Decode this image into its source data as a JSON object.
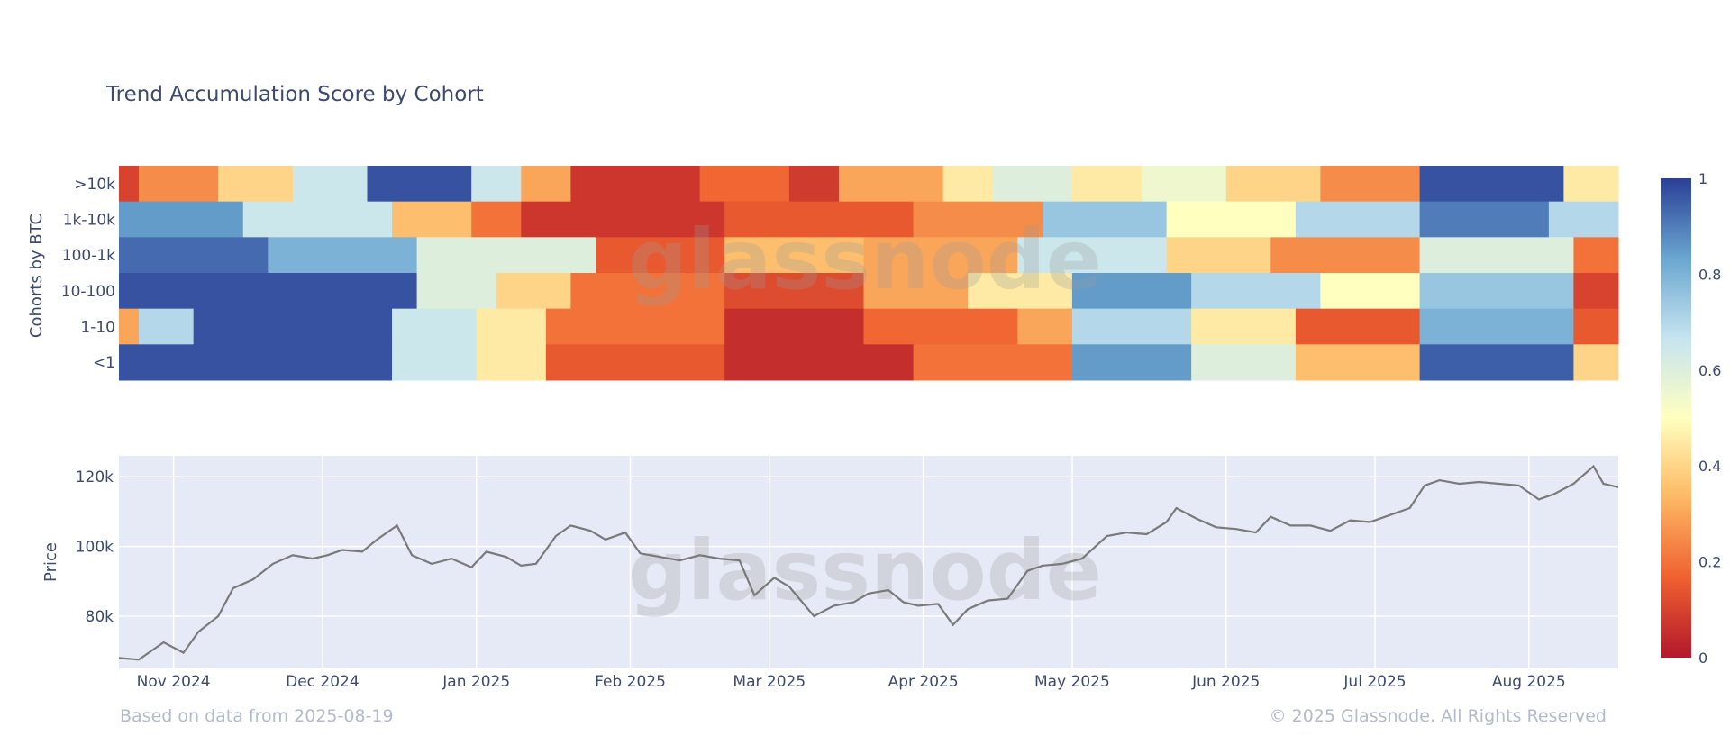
{
  "title": "Trend Accumulation Score by Cohort",
  "footer": {
    "left": "Based on data from 2025-08-19",
    "right": "© 2025 Glassnode. All Rights Reserved"
  },
  "watermark": "glassnode",
  "colors": {
    "scale": [
      "#b2182b",
      "#ef6030",
      "#fdb864",
      "#ffffbf",
      "#c6e4f0",
      "#6aa6cf",
      "#2a3f97"
    ],
    "price_line": "#7a7a7a",
    "price_bg": "#e6eaf6"
  },
  "chart_data": [
    {
      "type": "heatmap",
      "title": "Trend Accumulation Score by Cohort",
      "ylabel": "Cohorts by BTC",
      "rows": [
        ">10k",
        "1k-10k",
        "100-1k",
        "10-100",
        "1-10",
        "<1"
      ],
      "colorbar": {
        "min": 0,
        "max": 1,
        "ticks": [
          0,
          0.2,
          0.4,
          0.6,
          0.8,
          1
        ],
        "tick_labels": [
          "0",
          "0.2",
          "0.4",
          "0.6",
          "0.8",
          "1"
        ]
      },
      "segments_note": "each row: [start_date, end_date, score]",
      "values": {
        ">10k": [
          [
            "2024-10-21",
            "2024-10-25",
            0.1
          ],
          [
            "2024-10-25",
            "2024-11-10",
            0.25
          ],
          [
            "2024-11-10",
            "2024-11-25",
            0.4
          ],
          [
            "2024-11-25",
            "2024-12-10",
            0.65
          ],
          [
            "2024-12-10",
            "2024-12-31",
            0.97
          ],
          [
            "2024-12-31",
            "2025-01-10",
            0.65
          ],
          [
            "2025-01-10",
            "2025-01-20",
            0.3
          ],
          [
            "2025-01-20",
            "2025-02-15",
            0.07
          ],
          [
            "2025-02-15",
            "2025-03-05",
            0.18
          ],
          [
            "2025-03-05",
            "2025-03-15",
            0.08
          ],
          [
            "2025-03-15",
            "2025-04-05",
            0.3
          ],
          [
            "2025-04-05",
            "2025-04-15",
            0.45
          ],
          [
            "2025-04-15",
            "2025-05-01",
            0.6
          ],
          [
            "2025-05-01",
            "2025-05-15",
            0.45
          ],
          [
            "2025-05-15",
            "2025-06-01",
            0.55
          ],
          [
            "2025-06-01",
            "2025-06-20",
            0.4
          ],
          [
            "2025-06-20",
            "2025-07-10",
            0.25
          ],
          [
            "2025-07-10",
            "2025-08-08",
            0.97
          ],
          [
            "2025-08-08",
            "2025-08-19",
            0.45
          ]
        ],
        "1k-10k": [
          [
            "2024-10-21",
            "2024-11-15",
            0.85
          ],
          [
            "2024-11-15",
            "2024-12-15",
            0.65
          ],
          [
            "2024-12-15",
            "2024-12-31",
            0.35
          ],
          [
            "2024-12-31",
            "2025-01-10",
            0.2
          ],
          [
            "2025-01-10",
            "2025-02-20",
            0.07
          ],
          [
            "2025-02-20",
            "2025-03-30",
            0.15
          ],
          [
            "2025-03-30",
            "2025-04-25",
            0.25
          ],
          [
            "2025-04-25",
            "2025-05-20",
            0.75
          ],
          [
            "2025-05-20",
            "2025-06-15",
            0.5
          ],
          [
            "2025-06-15",
            "2025-07-10",
            0.7
          ],
          [
            "2025-07-10",
            "2025-08-05",
            0.9
          ],
          [
            "2025-08-05",
            "2025-08-19",
            0.7
          ]
        ],
        "100-1k": [
          [
            "2024-10-21",
            "2024-11-20",
            0.93
          ],
          [
            "2024-11-20",
            "2024-12-20",
            0.8
          ],
          [
            "2024-12-20",
            "2025-01-25",
            0.6
          ],
          [
            "2025-01-25",
            "2025-02-20",
            0.15
          ],
          [
            "2025-02-20",
            "2025-03-20",
            0.35
          ],
          [
            "2025-03-20",
            "2025-04-20",
            0.3
          ],
          [
            "2025-04-20",
            "2025-05-20",
            0.65
          ],
          [
            "2025-05-20",
            "2025-06-10",
            0.4
          ],
          [
            "2025-06-10",
            "2025-07-10",
            0.25
          ],
          [
            "2025-07-10",
            "2025-08-10",
            0.6
          ],
          [
            "2025-08-10",
            "2025-08-19",
            0.2
          ]
        ],
        "10-100": [
          [
            "2024-10-21",
            "2024-12-20",
            0.97
          ],
          [
            "2024-12-20",
            "2025-01-05",
            0.6
          ],
          [
            "2025-01-05",
            "2025-01-20",
            0.4
          ],
          [
            "2025-01-20",
            "2025-02-20",
            0.2
          ],
          [
            "2025-02-20",
            "2025-03-20",
            0.12
          ],
          [
            "2025-03-20",
            "2025-04-10",
            0.3
          ],
          [
            "2025-04-10",
            "2025-05-01",
            0.45
          ],
          [
            "2025-05-01",
            "2025-05-25",
            0.85
          ],
          [
            "2025-05-25",
            "2025-06-20",
            0.7
          ],
          [
            "2025-06-20",
            "2025-07-10",
            0.5
          ],
          [
            "2025-07-10",
            "2025-08-10",
            0.75
          ],
          [
            "2025-08-10",
            "2025-08-19",
            0.1
          ]
        ],
        "1-10": [
          [
            "2024-10-21",
            "2024-10-25",
            0.3
          ],
          [
            "2024-10-25",
            "2024-11-05",
            0.7
          ],
          [
            "2024-11-05",
            "2024-12-15",
            0.97
          ],
          [
            "2024-12-15",
            "2025-01-01",
            0.65
          ],
          [
            "2025-01-01",
            "2025-01-15",
            0.45
          ],
          [
            "2025-01-15",
            "2025-02-20",
            0.2
          ],
          [
            "2025-02-20",
            "2025-03-20",
            0.05
          ],
          [
            "2025-03-20",
            "2025-04-20",
            0.18
          ],
          [
            "2025-04-20",
            "2025-05-01",
            0.3
          ],
          [
            "2025-05-01",
            "2025-05-25",
            0.7
          ],
          [
            "2025-05-25",
            "2025-06-15",
            0.45
          ],
          [
            "2025-06-15",
            "2025-07-10",
            0.15
          ],
          [
            "2025-07-10",
            "2025-08-10",
            0.8
          ],
          [
            "2025-08-10",
            "2025-08-19",
            0.15
          ]
        ],
        "<1": [
          [
            "2024-10-21",
            "2024-12-15",
            0.97
          ],
          [
            "2024-12-15",
            "2025-01-01",
            0.65
          ],
          [
            "2025-01-01",
            "2025-01-15",
            0.45
          ],
          [
            "2025-01-15",
            "2025-02-20",
            0.15
          ],
          [
            "2025-02-20",
            "2025-03-30",
            0.05
          ],
          [
            "2025-03-30",
            "2025-05-01",
            0.2
          ],
          [
            "2025-05-01",
            "2025-05-25",
            0.85
          ],
          [
            "2025-05-25",
            "2025-06-15",
            0.6
          ],
          [
            "2025-06-15",
            "2025-07-10",
            0.35
          ],
          [
            "2025-07-10",
            "2025-08-10",
            0.95
          ],
          [
            "2025-08-10",
            "2025-08-19",
            0.4
          ]
        ]
      }
    },
    {
      "type": "line",
      "ylabel": "Price",
      "ylim": [
        65000,
        126000
      ],
      "yticks": [
        80000,
        100000,
        120000
      ],
      "ytick_labels": [
        "80k",
        "100k",
        "120k"
      ],
      "xlim": [
        "2024-10-21",
        "2025-08-19"
      ],
      "xticks": [
        "2024-11-01",
        "2024-12-01",
        "2025-01-01",
        "2025-02-01",
        "2025-03-01",
        "2025-04-01",
        "2025-05-01",
        "2025-06-01",
        "2025-07-01",
        "2025-08-01"
      ],
      "xtick_labels": [
        "Nov 2024",
        "Dec 2024",
        "Jan 2025",
        "Feb 2025",
        "Mar 2025",
        "Apr 2025",
        "May 2025",
        "Jun 2025",
        "Jul 2025",
        "Aug 2025"
      ],
      "series": [
        {
          "x": [
            "2024-10-21",
            "2024-10-25",
            "2024-10-30",
            "2024-11-03",
            "2024-11-06",
            "2024-11-10",
            "2024-11-13",
            "2024-11-17",
            "2024-11-21",
            "2024-11-25",
            "2024-11-29",
            "2024-12-02",
            "2024-12-05",
            "2024-12-09",
            "2024-12-12",
            "2024-12-16",
            "2024-12-19",
            "2024-12-23",
            "2024-12-27",
            "2024-12-31",
            "2025-01-03",
            "2025-01-07",
            "2025-01-10",
            "2025-01-13",
            "2025-01-17",
            "2025-01-20",
            "2025-01-24",
            "2025-01-27",
            "2025-01-31",
            "2025-02-03",
            "2025-02-07",
            "2025-02-11",
            "2025-02-15",
            "2025-02-19",
            "2025-02-23",
            "2025-02-26",
            "2025-03-02",
            "2025-03-05",
            "2025-03-10",
            "2025-03-14",
            "2025-03-18",
            "2025-03-21",
            "2025-03-25",
            "2025-03-28",
            "2025-03-31",
            "2025-04-04",
            "2025-04-07",
            "2025-04-10",
            "2025-04-14",
            "2025-04-18",
            "2025-04-22",
            "2025-04-25",
            "2025-04-29",
            "2025-05-03",
            "2025-05-08",
            "2025-05-12",
            "2025-05-16",
            "2025-05-20",
            "2025-05-22",
            "2025-05-26",
            "2025-05-30",
            "2025-06-03",
            "2025-06-07",
            "2025-06-10",
            "2025-06-14",
            "2025-06-18",
            "2025-06-22",
            "2025-06-26",
            "2025-06-30",
            "2025-07-04",
            "2025-07-08",
            "2025-07-11",
            "2025-07-14",
            "2025-07-18",
            "2025-07-22",
            "2025-07-26",
            "2025-07-30",
            "2025-08-03",
            "2025-08-06",
            "2025-08-10",
            "2025-08-14",
            "2025-08-16",
            "2025-08-19"
          ],
          "y": [
            68000,
            67500,
            72500,
            69500,
            75500,
            80000,
            88000,
            90500,
            95000,
            97500,
            96500,
            97500,
            99000,
            98500,
            102000,
            106000,
            97500,
            95000,
            96500,
            94000,
            98500,
            97000,
            94500,
            95000,
            103000,
            106000,
            104500,
            102000,
            104000,
            98000,
            97000,
            96000,
            97500,
            96500,
            96000,
            86000,
            91000,
            88500,
            80000,
            83000,
            84000,
            86500,
            87500,
            84000,
            83000,
            83500,
            77500,
            82000,
            84500,
            85000,
            93000,
            94500,
            95000,
            96500,
            103000,
            104000,
            103500,
            107000,
            111000,
            108000,
            105500,
            105000,
            104000,
            108500,
            106000,
            106000,
            104500,
            107500,
            107000,
            109000,
            111000,
            117500,
            119000,
            118000,
            118500,
            118000,
            117500,
            113500,
            115000,
            118000,
            123000,
            118000,
            117000
          ]
        }
      ]
    }
  ]
}
